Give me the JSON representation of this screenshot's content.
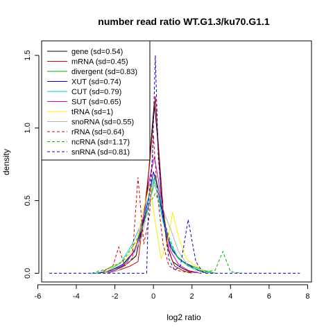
{
  "chart_data": {
    "type": "line",
    "title": "number read ratio WT.G1.3/ku70.G1.1",
    "xlabel": "log2 ratio",
    "ylabel": "density",
    "xlim": [
      -5.8,
      8.2
    ],
    "ylim": [
      -0.06,
      1.6
    ],
    "x_ticks": [
      -6,
      -4,
      -2,
      0,
      2,
      4,
      6,
      8
    ],
    "x_tick_labels": [
      "-6",
      "-4",
      "-2",
      "0",
      "2",
      "4",
      "6",
      "8"
    ],
    "y_ticks": [
      0.0,
      0.5,
      1.0,
      1.5
    ],
    "y_tick_labels": [
      "0.0",
      "0.5",
      "1.0",
      "1.5"
    ],
    "grid": false,
    "legend_position": "top-left",
    "series": [
      {
        "name": "gene (sd=0.54)",
        "color": "#000000",
        "dash": "solid",
        "x": [
          -2.6,
          -2.0,
          -1.4,
          -0.9,
          -0.6,
          -0.3,
          -0.1,
          0.05,
          0.2,
          0.4,
          0.7,
          1.0,
          1.4,
          1.9,
          2.5
        ],
        "y": [
          0,
          0.02,
          0.06,
          0.12,
          0.3,
          0.6,
          0.95,
          1.18,
          0.95,
          0.55,
          0.2,
          0.08,
          0.04,
          0.01,
          0
        ]
      },
      {
        "name": "mRNA (sd=0.45)",
        "color": "#cc0000",
        "dash": "solid",
        "x": [
          -2.4,
          -1.8,
          -1.2,
          -0.8,
          -0.5,
          -0.2,
          0.0,
          0.1,
          0.25,
          0.5,
          0.8,
          1.1,
          1.5,
          2.0
        ],
        "y": [
          0,
          0.02,
          0.05,
          0.08,
          0.4,
          0.75,
          1.05,
          1.22,
          0.9,
          0.45,
          0.15,
          0.05,
          0.02,
          0
        ]
      },
      {
        "name": "divergent (sd=0.83)",
        "color": "#00b000",
        "dash": "solid",
        "x": [
          -3.0,
          -2.2,
          -1.6,
          -1.0,
          -0.5,
          -0.1,
          0.1,
          0.3,
          0.6,
          1.0,
          1.5,
          2.0,
          2.6,
          3.2
        ],
        "y": [
          0,
          0.02,
          0.05,
          0.15,
          0.35,
          0.55,
          0.68,
          0.55,
          0.3,
          0.15,
          0.08,
          0.05,
          0.02,
          0
        ]
      },
      {
        "name": "XUT (sd=0.74)",
        "color": "#0000cc",
        "dash": "solid",
        "x": [
          -2.8,
          -2.2,
          -1.6,
          -1.0,
          -0.6,
          -0.2,
          0.0,
          0.2,
          0.5,
          0.9,
          1.3,
          1.8,
          2.3,
          2.8
        ],
        "y": [
          0,
          0.02,
          0.06,
          0.15,
          0.3,
          0.55,
          0.7,
          0.6,
          0.38,
          0.18,
          0.1,
          0.06,
          0.02,
          0
        ]
      },
      {
        "name": "CUT (sd=0.79)",
        "color": "#00cccc",
        "dash": "solid",
        "x": [
          -2.9,
          -2.3,
          -1.7,
          -1.1,
          -0.6,
          -0.2,
          0.0,
          0.2,
          0.5,
          0.9,
          1.3,
          1.8,
          2.4,
          3.0
        ],
        "y": [
          0,
          0.02,
          0.07,
          0.2,
          0.35,
          0.55,
          0.65,
          0.55,
          0.35,
          0.2,
          0.1,
          0.05,
          0.02,
          0
        ]
      },
      {
        "name": "SUT (sd=0.65)",
        "color": "#cc00cc",
        "dash": "solid",
        "x": [
          -2.6,
          -2.0,
          -1.4,
          -0.9,
          -0.5,
          -0.2,
          0.05,
          0.25,
          0.5,
          0.9,
          1.3,
          1.8,
          2.4
        ],
        "y": [
          0,
          0.02,
          0.07,
          0.18,
          0.4,
          0.65,
          0.8,
          0.65,
          0.4,
          0.15,
          0.06,
          0.02,
          0
        ]
      },
      {
        "name": "tRNA (sd=1)",
        "color": "#ffee00",
        "dash": "solid",
        "x": [
          -2.6,
          -2.0,
          -1.4,
          -0.9,
          -0.5,
          -0.2,
          0.1,
          0.4,
          0.7,
          1.0,
          1.3,
          1.7,
          2.2,
          2.8
        ],
        "y": [
          0,
          0.05,
          0.1,
          0.2,
          0.45,
          0.6,
          0.35,
          0.1,
          0.2,
          0.42,
          0.25,
          0.1,
          0.05,
          0
        ]
      },
      {
        "name": "snoRNA (sd=0.55)",
        "color": "#b0b0b0",
        "dash": "solid",
        "x": [
          -2.6,
          -1.8,
          -1.2,
          -0.6,
          -0.2,
          0.1,
          0.3,
          0.6,
          0.9,
          1.3,
          1.8,
          2.4
        ],
        "y": [
          0,
          0.02,
          0.08,
          0.25,
          0.5,
          0.62,
          0.55,
          0.4,
          0.3,
          0.15,
          0.05,
          0
        ]
      },
      {
        "name": "rRNA (sd=0.64)",
        "color": "#cc0000",
        "dash": "dashed",
        "x": [
          -2.8,
          -2.1,
          -1.8,
          -1.5,
          -1.1,
          -0.8,
          -0.5,
          -0.2,
          0.0,
          0.2,
          0.5,
          0.8,
          1.2,
          1.6,
          2.0
        ],
        "y": [
          0,
          0.05,
          0.18,
          0.05,
          0.1,
          0.66,
          0.2,
          0.4,
          0.95,
          0.55,
          0.2,
          0.05,
          0.02,
          0.01,
          0
        ]
      },
      {
        "name": "ncRNA (sd=1.17)",
        "color": "#00b000",
        "dash": "dashed",
        "x": [
          -3.2,
          -2.4,
          -1.6,
          -1.0,
          -0.6,
          -0.2,
          0.1,
          0.4,
          0.8,
          1.2,
          1.8,
          2.6,
          3.2,
          3.6,
          4.0,
          4.6
        ],
        "y": [
          0,
          0.03,
          0.08,
          0.2,
          0.3,
          0.48,
          0.55,
          0.45,
          0.25,
          0.12,
          0.05,
          0.01,
          0.02,
          0.15,
          0.01,
          0
        ]
      },
      {
        "name": "snRNA (sd=0.81)",
        "color": "#0000cc",
        "dash": "dashed",
        "x": [
          -5.4,
          -3.0,
          -1.5,
          -0.35,
          -0.25,
          -0.05,
          0.1,
          0.25,
          0.5,
          0.8,
          1.1,
          1.4,
          1.8,
          2.2,
          2.6,
          3.2,
          7.6
        ],
        "y": [
          0,
          0,
          0,
          0,
          0.5,
          0.8,
          1.5,
          0.8,
          0.4,
          0.1,
          0.02,
          0.05,
          0.37,
          0.08,
          0,
          0,
          0
        ]
      }
    ]
  }
}
